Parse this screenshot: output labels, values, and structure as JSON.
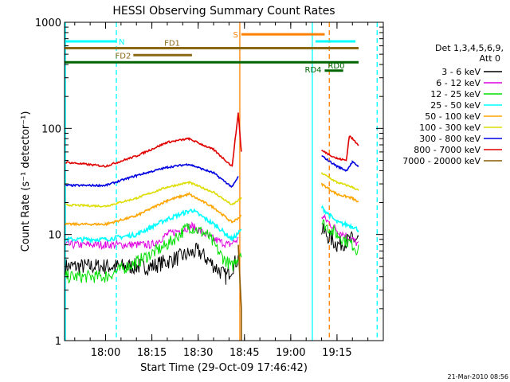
{
  "chart_data": {
    "type": "line",
    "title": "HESSI Observing Summary Count Rates",
    "xlabel": "Start Time (29-Oct-09 17:46:42)",
    "ylabel": "Count Rate (s⁻¹ detector⁻¹)",
    "y_scale": "log",
    "ylim": [
      1,
      1000
    ],
    "xlim": [
      "17:46:42",
      "19:30:00"
    ],
    "x_ticks": [
      "18:00",
      "18:15",
      "18:30",
      "18:45",
      "19:00",
      "19:15"
    ],
    "y_ticks": [
      "1",
      "10",
      "100",
      "1000"
    ],
    "grid": false,
    "legend": {
      "placement": "right",
      "header_line1": "Det 1,3,4,5,6,9,",
      "header_line2": "Att 0"
    },
    "timestamp": "21-Mar-2010 08:56",
    "series": [
      {
        "name": "3 - 6 keV",
        "color": "#000000",
        "points": [
          [
            "17:47",
            5
          ],
          [
            "18:00",
            5
          ],
          [
            "18:10",
            5
          ],
          [
            "18:15",
            5
          ],
          [
            "18:30",
            7
          ],
          [
            "18:39",
            4
          ],
          [
            "18:43",
            6
          ],
          [
            "18:45",
            null
          ],
          [
            "19:09",
            null
          ],
          [
            "19:10",
            11
          ],
          [
            "19:15",
            8
          ],
          [
            "19:20",
            9
          ],
          [
            "19:22",
            9
          ]
        ]
      },
      {
        "name": "6 - 12 keV",
        "color": "#e000e0",
        "points": [
          [
            "17:47",
            8
          ],
          [
            "18:00",
            8
          ],
          [
            "18:15",
            8
          ],
          [
            "18:20",
            10
          ],
          [
            "18:28",
            12
          ],
          [
            "18:35",
            9
          ],
          [
            "18:40",
            8
          ],
          [
            "18:43",
            9
          ],
          [
            "18:45",
            null
          ],
          [
            "19:09",
            null
          ],
          [
            "19:10",
            15
          ],
          [
            "19:15",
            11
          ],
          [
            "19:20",
            9
          ],
          [
            "19:22",
            8
          ]
        ]
      },
      {
        "name": "12 - 25 keV",
        "color": "#00e000",
        "points": [
          [
            "17:47",
            4
          ],
          [
            "18:00",
            4
          ],
          [
            "18:10",
            5.5
          ],
          [
            "18:20",
            8
          ],
          [
            "18:27",
            12
          ],
          [
            "18:33",
            10
          ],
          [
            "18:38",
            6
          ],
          [
            "18:41",
            5
          ],
          [
            "18:44",
            7
          ],
          [
            "18:45",
            null
          ],
          [
            "19:09",
            null
          ],
          [
            "19:10",
            13
          ],
          [
            "19:15",
            10
          ],
          [
            "19:20",
            8
          ],
          [
            "19:22",
            7
          ]
        ]
      },
      {
        "name": "25 - 50 keV",
        "color": "#00ffff",
        "points": [
          [
            "17:47",
            9
          ],
          [
            "18:00",
            9
          ],
          [
            "18:10",
            10
          ],
          [
            "18:20",
            14
          ],
          [
            "18:28",
            17
          ],
          [
            "18:36",
            12
          ],
          [
            "18:41",
            9
          ],
          [
            "18:44",
            11
          ],
          [
            "18:45",
            null
          ],
          [
            "19:09",
            null
          ],
          [
            "19:10",
            18
          ],
          [
            "19:15",
            13
          ],
          [
            "19:20",
            12
          ],
          [
            "19:22",
            11
          ]
        ]
      },
      {
        "name": "50 - 100 keV",
        "color": "#ffa500",
        "points": [
          [
            "17:47",
            12.5
          ],
          [
            "18:00",
            12.5
          ],
          [
            "18:10",
            15
          ],
          [
            "18:20",
            21
          ],
          [
            "18:27",
            24
          ],
          [
            "18:35",
            18
          ],
          [
            "18:41",
            13
          ],
          [
            "18:44",
            15
          ],
          [
            "18:45",
            null
          ],
          [
            "19:09",
            null
          ],
          [
            "19:10",
            30
          ],
          [
            "19:15",
            24
          ],
          [
            "19:20",
            22
          ],
          [
            "19:22",
            20
          ]
        ]
      },
      {
        "name": "100 - 300 keV",
        "color": "#dddd00",
        "points": [
          [
            "17:47",
            19
          ],
          [
            "18:00",
            18.5
          ],
          [
            "18:10",
            22
          ],
          [
            "18:20",
            28
          ],
          [
            "18:27",
            31
          ],
          [
            "18:35",
            25
          ],
          [
            "18:41",
            19
          ],
          [
            "18:44",
            22
          ],
          [
            "18:45",
            null
          ],
          [
            "19:09",
            null
          ],
          [
            "19:10",
            38
          ],
          [
            "19:15",
            31
          ],
          [
            "19:20",
            28
          ],
          [
            "19:22",
            26
          ]
        ]
      },
      {
        "name": "300 - 800 keV",
        "color": "#0000e0",
        "points": [
          [
            "17:47",
            29
          ],
          [
            "18:00",
            29
          ],
          [
            "18:10",
            36
          ],
          [
            "18:20",
            43
          ],
          [
            "18:27",
            46
          ],
          [
            "18:35",
            38
          ],
          [
            "18:41",
            28
          ],
          [
            "18:43",
            35
          ],
          [
            "18:45",
            null
          ],
          [
            "19:09",
            null
          ],
          [
            "19:10",
            55
          ],
          [
            "19:15",
            44
          ],
          [
            "19:18",
            40
          ],
          [
            "19:20",
            48
          ],
          [
            "19:22",
            44
          ]
        ]
      },
      {
        "name": "800 - 7000 keV",
        "color": "#e00000",
        "points": [
          [
            "17:47",
            48
          ],
          [
            "18:00",
            44
          ],
          [
            "18:10",
            55
          ],
          [
            "18:20",
            74
          ],
          [
            "18:27",
            80
          ],
          [
            "18:35",
            63
          ],
          [
            "18:41",
            44
          ],
          [
            "18:43",
            140
          ],
          [
            "18:44",
            60
          ],
          [
            "18:45",
            null
          ],
          [
            "19:09",
            null
          ],
          [
            "19:10",
            62
          ],
          [
            "19:15",
            52
          ],
          [
            "19:18",
            50
          ],
          [
            "19:19",
            85
          ],
          [
            "19:22",
            70
          ]
        ]
      },
      {
        "name": "7000 - 20000 keV",
        "color": "#8b5a00",
        "points": [
          [
            "18:43",
            8
          ],
          [
            "18:44",
            2
          ],
          [
            "18:44",
            1
          ]
        ]
      }
    ],
    "flag_bars": [
      {
        "label": "N",
        "color": "#00ffff",
        "start": "17:46:42",
        "end": "18:03:30",
        "level": 660
      },
      {
        "label": "",
        "color": "#00ffff",
        "start": "19:08",
        "end": "19:21",
        "level": 660
      },
      {
        "label": "S",
        "color": "#ff8000",
        "start": "18:44",
        "end": "19:11",
        "level": 770
      },
      {
        "label": "FD1",
        "color": "#8b6914",
        "start": "17:46:42",
        "end": "19:22",
        "level": 570
      },
      {
        "label": "FD2",
        "color": "#8b6914",
        "start": "18:09",
        "end": "18:28",
        "level": 490
      },
      {
        "label": "RD0",
        "color": "#006400",
        "start": "19:11",
        "end": "19:17",
        "level": 350
      },
      {
        "label": "RD4",
        "color": "#006400",
        "start": "17:46:42",
        "end": "19:22",
        "level": 420
      }
    ],
    "vertical_markers": [
      {
        "time": "18:03:30",
        "color": "#00ffff",
        "style": "dashed"
      },
      {
        "time": "18:43:30",
        "color": "#ff8000",
        "style": "solid"
      },
      {
        "time": "19:07",
        "color": "#00ffff",
        "style": "solid"
      },
      {
        "time": "19:12:30",
        "color": "#ff8000",
        "style": "dashed"
      },
      {
        "time": "19:28",
        "color": "#00ffff",
        "style": "dashed"
      }
    ]
  }
}
